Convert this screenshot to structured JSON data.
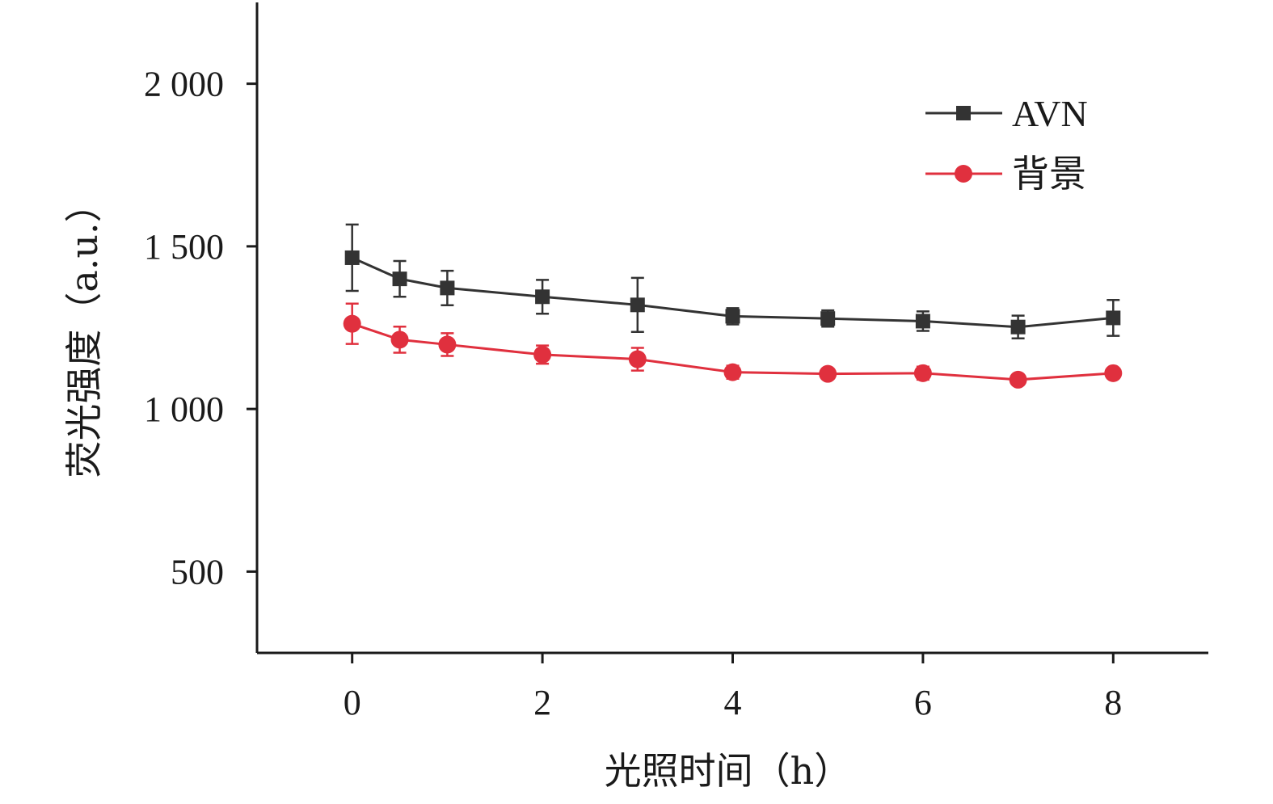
{
  "chart_data": {
    "type": "line",
    "xlabel": "光照时间（h）",
    "ylabel": "荧光强度（a.u.）",
    "xlim": [
      -1,
      9
    ],
    "ylim": [
      250,
      2250
    ],
    "xticks": [
      0,
      2,
      4,
      6,
      8
    ],
    "xtick_labels": [
      "0",
      "2",
      "4",
      "6",
      "8"
    ],
    "yticks": [
      500,
      1000,
      1500,
      2000
    ],
    "ytick_labels": [
      "500",
      "1 000",
      "1 500",
      "2 000"
    ],
    "grid": false,
    "legend": "top-right",
    "x": [
      0,
      0.5,
      1,
      2,
      3,
      4,
      5,
      6,
      7,
      8
    ],
    "series": [
      {
        "name": "AVN",
        "marker": "square",
        "color": "#333333",
        "values": [
          1465,
          1400,
          1372,
          1345,
          1320,
          1285,
          1278,
          1270,
          1252,
          1280
        ],
        "errors": [
          102,
          55,
          53,
          52,
          83,
          25,
          25,
          30,
          35,
          55
        ]
      },
      {
        "name": "背景",
        "marker": "circle",
        "color": "#e0303e",
        "values": [
          1262,
          1213,
          1198,
          1167,
          1153,
          1113,
          1108,
          1110,
          1090,
          1110
        ],
        "errors": [
          62,
          40,
          35,
          28,
          35,
          20,
          15,
          20,
          15,
          12
        ]
      }
    ]
  }
}
